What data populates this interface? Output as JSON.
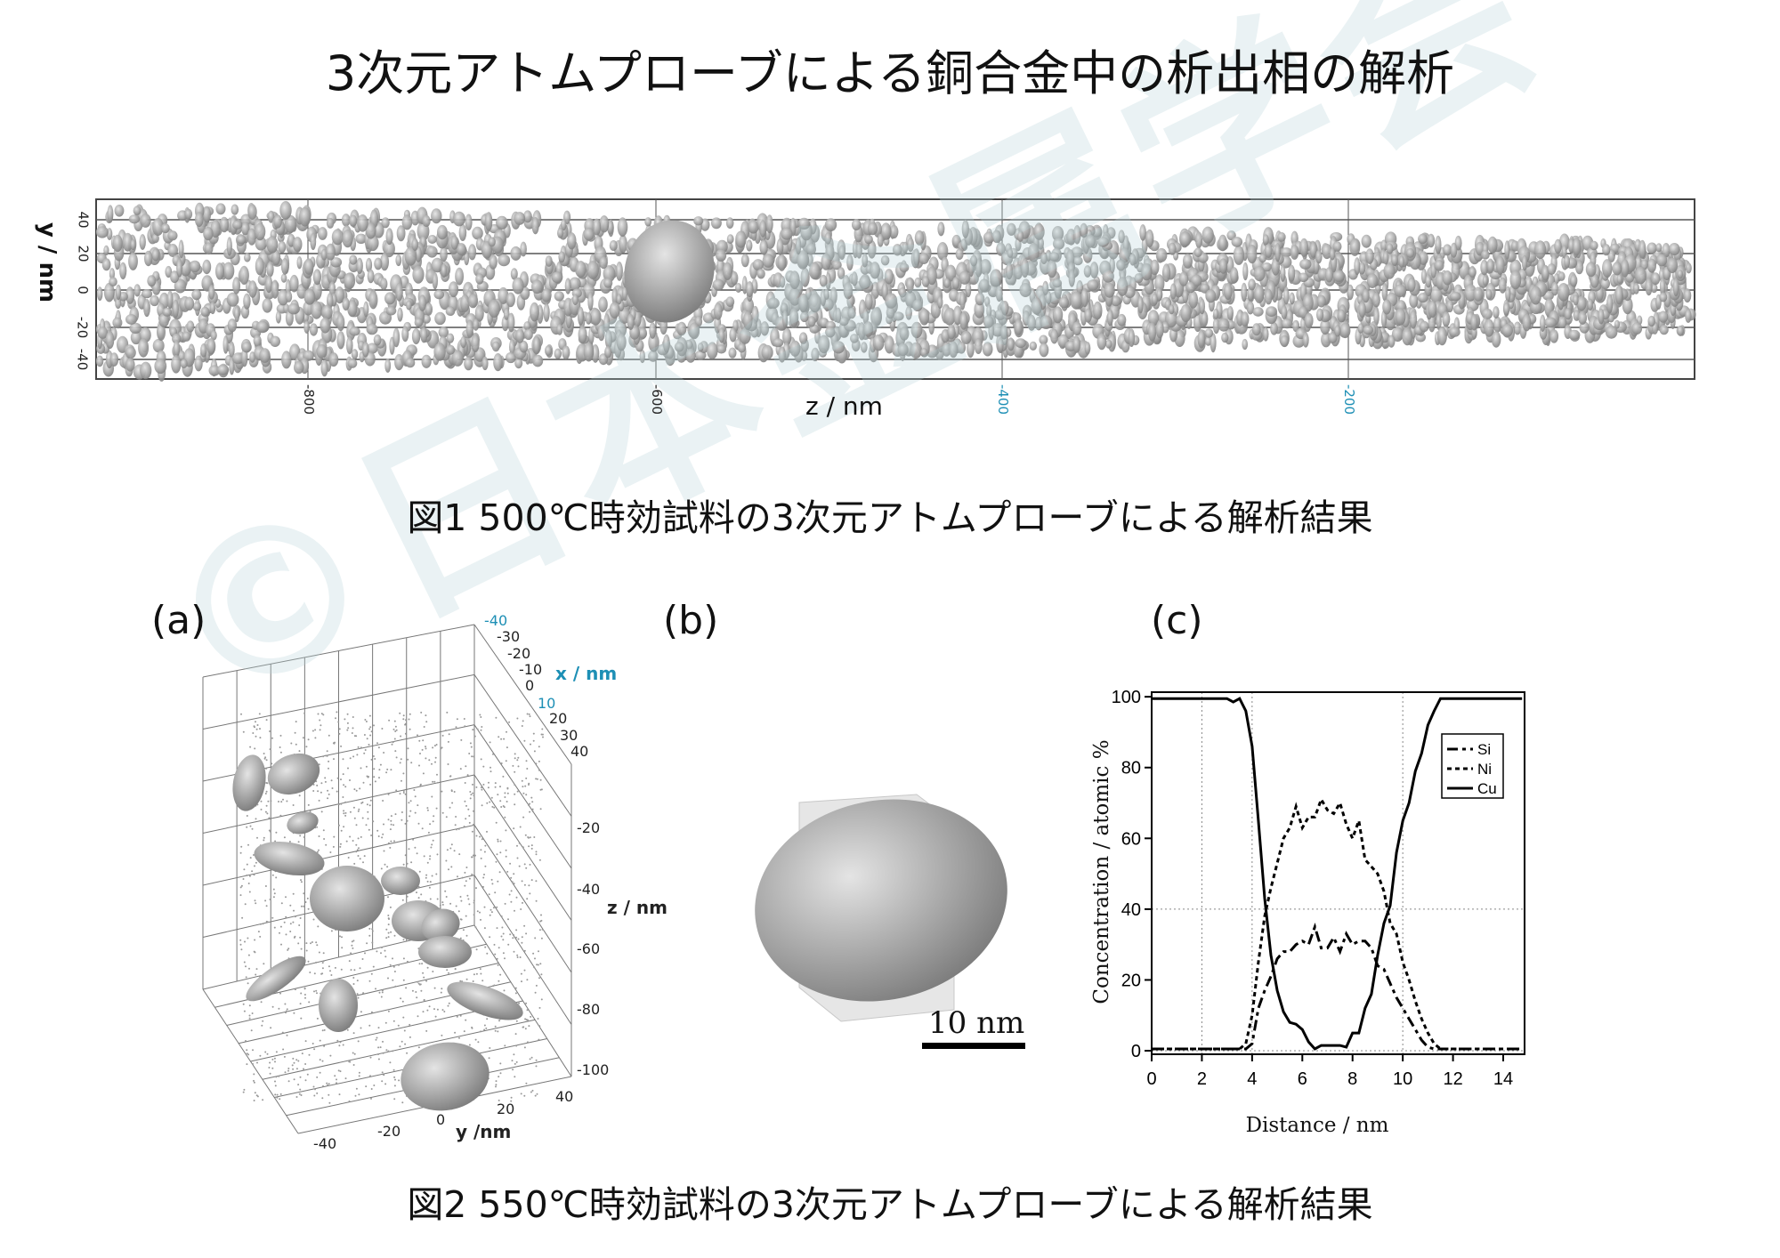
{
  "title": "3次元アトムプローブによる銅合金中の析出相の解析",
  "figure1": {
    "caption": "図1 500℃時効試料の3次元アトムプローブによる解析結果",
    "y_axis_label": "y / nm",
    "y_ticks": [
      "40",
      "20",
      "0",
      "-20",
      "-40"
    ],
    "x_axis_label": "z / nm",
    "x_ticks": [
      "-800",
      "-600",
      "-400",
      "-200"
    ]
  },
  "figure2": {
    "caption": "図2 550℃時効試料の3次元アトムプローブによる解析結果",
    "panel_a": {
      "label": "(a)",
      "x_axis_label": "x / nm",
      "x_ticks": [
        "-40",
        "-30",
        "-20",
        "-10",
        "0",
        "10",
        "20",
        "30",
        "40"
      ],
      "z_axis_label": "z / nm",
      "z_ticks": [
        "-20",
        "-40",
        "-60",
        "-80",
        "-100"
      ],
      "y_axis_label": "y /nm",
      "y_ticks": [
        "-40",
        "-20",
        "0",
        "20",
        "40"
      ]
    },
    "panel_b": {
      "label": "(b)",
      "scale_bar": "10 nm"
    },
    "panel_c": {
      "label": "(c)"
    }
  },
  "watermark": "©日本金属学会",
  "colors": {
    "particle": "#9a9a9a",
    "watermark": "#b7d4d8",
    "accent_blue": "#1d8fb5"
  },
  "chart_data": {
    "type": "line",
    "title": "",
    "xlabel": "Distance / nm",
    "ylabel": "Concentration / atomic %",
    "xlim": [
      0,
      14.85
    ],
    "ylim": [
      -1,
      101.3
    ],
    "x_ticks": [
      "0",
      "2",
      "4",
      "6",
      "8",
      "10",
      "12",
      "14"
    ],
    "y_ticks": [
      "0",
      "20",
      "40",
      "60",
      "80",
      "100"
    ],
    "gridlines_x": [
      2,
      4,
      10
    ],
    "gridlines_y": [
      0,
      40
    ],
    "grid_style": "dotted",
    "legend_placement": "top-right",
    "x": [
      0,
      0.25,
      0.5,
      0.75,
      1,
      1.25,
      1.5,
      1.75,
      2,
      2.25,
      2.5,
      2.75,
      3,
      3.25,
      3.5,
      3.75,
      4,
      4.25,
      4.5,
      4.75,
      5,
      5.25,
      5.5,
      5.75,
      6,
      6.25,
      6.5,
      6.75,
      7,
      7.25,
      7.5,
      7.75,
      8,
      8.25,
      8.5,
      8.75,
      9,
      9.25,
      9.5,
      9.75,
      10,
      10.25,
      10.5,
      10.75,
      11,
      11.25,
      11.5,
      11.75,
      12,
      12.25,
      12.5,
      12.75,
      13,
      13.25,
      13.5,
      13.75,
      14,
      14.25,
      14.5,
      14.75
    ],
    "series": [
      {
        "name": "Si",
        "style": "dash-dot",
        "values": [
          0.5,
          0.5,
          0.5,
          0.5,
          0.5,
          0.5,
          0.5,
          0.5,
          0.5,
          0.5,
          0.5,
          0.5,
          0.5,
          0.5,
          0.5,
          0.5,
          2,
          12,
          17,
          21,
          26,
          28,
          28,
          30,
          31,
          30,
          35,
          29,
          29,
          32,
          28,
          33,
          30,
          31,
          31,
          29,
          24,
          23,
          19,
          15,
          12,
          9,
          6,
          3,
          1,
          0.5,
          0.5,
          0.5,
          0.5,
          0.5,
          0.5,
          0.5,
          0.5,
          0.5,
          0.5,
          0.5,
          0.5,
          0.5,
          0.5,
          0.5
        ]
      },
      {
        "name": "Ni",
        "style": "dotted",
        "values": [
          0.5,
          0.5,
          0.5,
          0.5,
          0.5,
          0.5,
          0.5,
          0.5,
          0.5,
          0.5,
          0.5,
          0.5,
          0.5,
          0.5,
          0.5,
          2,
          10,
          25,
          38,
          46,
          53,
          60,
          63,
          69,
          63,
          66,
          66,
          71,
          68,
          67,
          70,
          64,
          60,
          65,
          54,
          52,
          50,
          45,
          36,
          33,
          25,
          20,
          14,
          9,
          5,
          2,
          0.5,
          0.5,
          0.5,
          0.5,
          0.5,
          0.5,
          0.5,
          0.5,
          0.5,
          0.5,
          0.5,
          0.5,
          0.5,
          0.5
        ]
      },
      {
        "name": "Cu",
        "style": "solid",
        "values": [
          99.5,
          99.5,
          99.5,
          99.5,
          99.5,
          99.5,
          99.5,
          99.5,
          99.5,
          99.5,
          99.5,
          99.5,
          99.5,
          98.5,
          99.5,
          96,
          86,
          65,
          43,
          27,
          17,
          11,
          8,
          7.5,
          6,
          2.5,
          0.5,
          1.5,
          1.5,
          1.5,
          1.5,
          1,
          5,
          5,
          12,
          16,
          27,
          36,
          41,
          56,
          65,
          70,
          79,
          84,
          92,
          96,
          99.5,
          99.5,
          99.5,
          99.5,
          99.5,
          99.5,
          99.5,
          99.5,
          99.5,
          99.5,
          99.5,
          99.5,
          99.5,
          99.5
        ]
      }
    ]
  }
}
